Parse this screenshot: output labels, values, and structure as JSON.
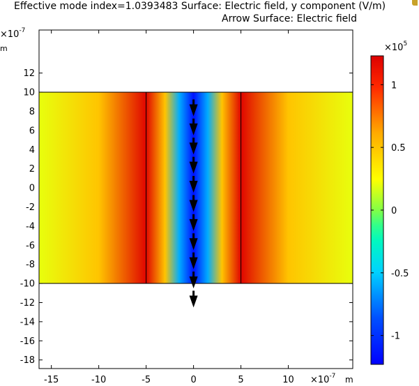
{
  "header": {
    "title_line1": "Effective mode index=1.0393483   Surface: Electric field, y component (V/m)",
    "title_line2": "Arrow Surface: Electric field"
  },
  "colorbar": {
    "exponent_base": "×10",
    "exponent_power": "5",
    "tick_labels": [
      "1",
      "0.5",
      "0",
      "-0.5",
      "-1"
    ],
    "tick_values": [
      1,
      0.5,
      0,
      -0.5,
      -1
    ],
    "range": [
      -1.23,
      1.23
    ],
    "colormap": "rainbow"
  },
  "chart_data": {
    "type": "heatmap",
    "title": "Effective mode index=1.0393483   Surface: Electric field, y component (V/m)",
    "subtitle": "Arrow Surface: Electric field",
    "effective_mode_index": 1.0393483,
    "x_axis": {
      "label": "m",
      "exponent_base": "×10",
      "exponent_power": "-7",
      "ticks": [
        -15,
        -10,
        -5,
        0,
        5,
        10
      ],
      "tick_labels": [
        "-15",
        "-10",
        "-5",
        "0",
        "5",
        "10"
      ],
      "range": [
        -16.3,
        16.8
      ]
    },
    "y_axis": {
      "label": "m",
      "exponent_base": "×10",
      "exponent_power": "-7",
      "ticks": [
        12,
        10,
        8,
        6,
        4,
        2,
        0,
        -2,
        -4,
        -6,
        -8,
        -10,
        -12,
        -14,
        -16,
        -18
      ],
      "tick_labels": [
        "12",
        "10",
        "8",
        "6",
        "4",
        "2",
        "0",
        "-2",
        "-4",
        "-6",
        "-8",
        "-10",
        "-12",
        "-14",
        "-16",
        "-18"
      ],
      "range": [
        -18.9,
        16.5
      ]
    },
    "domain": {
      "x_range": [
        -16.3,
        16.8
      ],
      "y_range": [
        -10,
        10
      ],
      "core_x_range": [
        -5,
        5
      ]
    },
    "field_profile": {
      "x": [
        -16.3,
        -10,
        -5,
        -5,
        -3,
        -1.5,
        0,
        1.5,
        3,
        5,
        5,
        10,
        16.8
      ],
      "Ey_scaled_1e5": [
        0.2,
        0.5,
        1.2,
        1.2,
        0.5,
        -0.6,
        -1.15,
        -0.6,
        0.5,
        1.2,
        1.2,
        0.5,
        0.2
      ]
    },
    "arrows": {
      "x": 0,
      "y_positions": [
        8,
        6,
        4,
        2,
        0,
        -2,
        -4,
        -6,
        -8,
        -10,
        -12
      ],
      "direction": "down"
    },
    "grid": false,
    "legend": "colorbar-right"
  }
}
